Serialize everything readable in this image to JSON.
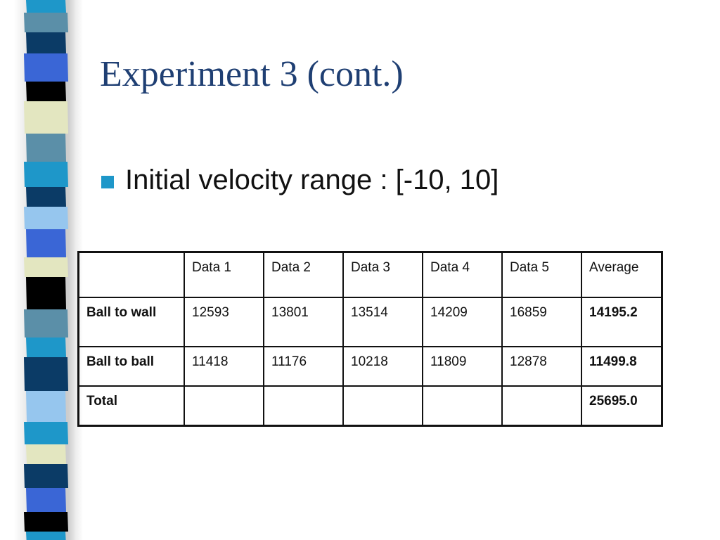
{
  "slide": {
    "title": "Experiment 3 (cont.)",
    "bullet": "Initial velocity range : [-10, 10]",
    "bullet_color": "#1e97c9",
    "title_color": "#1f3f73",
    "accent_value_color": "#2a63d1"
  },
  "table": {
    "corner": "",
    "columns": [
      "Data 1",
      "Data 2",
      "Data 3",
      "Data 4",
      "Data 5",
      "Average"
    ],
    "rows": [
      {
        "label": "Ball to wall",
        "values": [
          "12593",
          "13801",
          "13514",
          "14209",
          "16859"
        ],
        "average": "14195.2"
      },
      {
        "label": "Ball to ball",
        "values": [
          "11418",
          "11176",
          "10218",
          "11809",
          "12878"
        ],
        "average": "11499.8"
      },
      {
        "label": "Total",
        "values": [
          "",
          "",
          "",
          "",
          ""
        ],
        "average": "25695.0"
      }
    ]
  },
  "decoration": {
    "stripe_colors": [
      "#1e97c9",
      "#5b8fa8",
      "#0b3b66",
      "#3a66d6",
      "#000000",
      "#e3e6c0",
      "#96c6ee"
    ]
  }
}
